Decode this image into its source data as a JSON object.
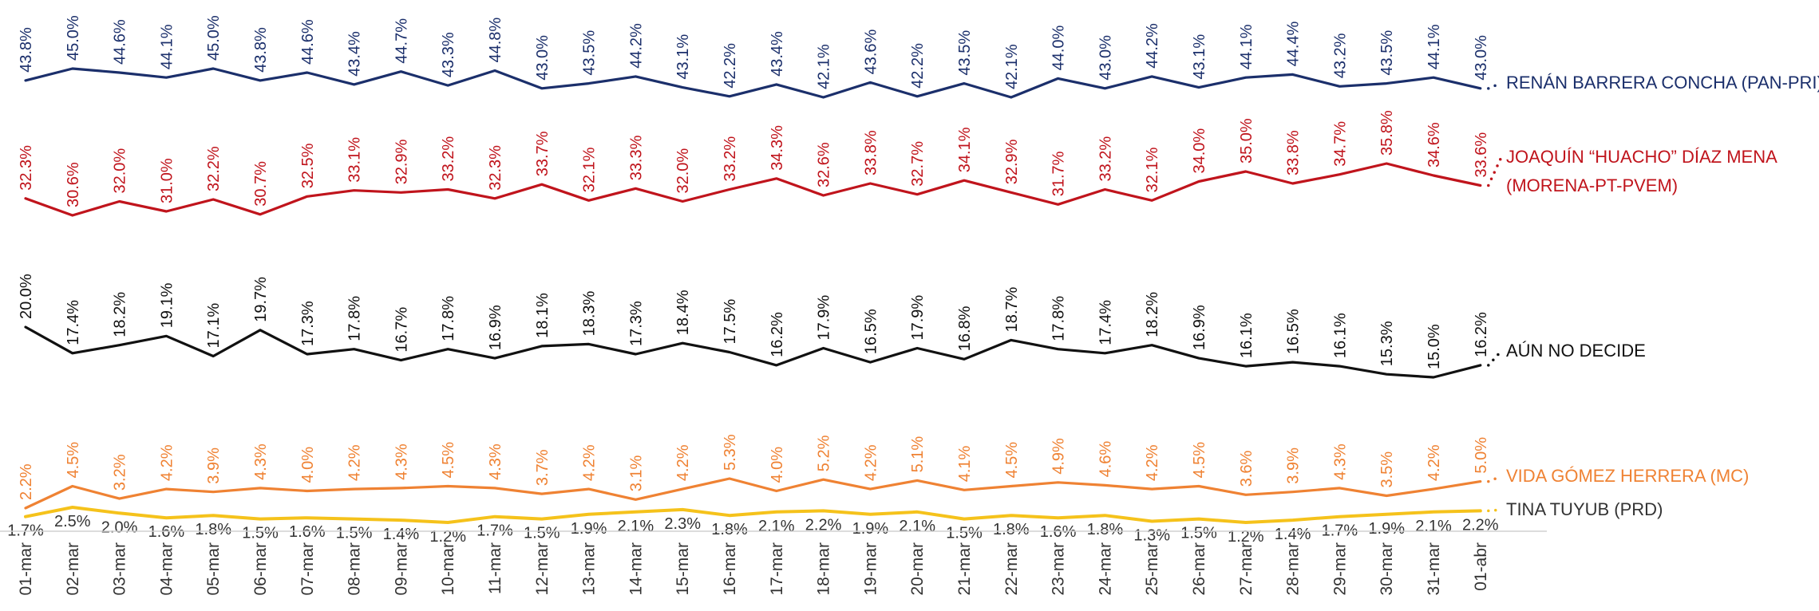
{
  "chart_data": {
    "type": "line",
    "categories": [
      "01-mar",
      "02-mar",
      "03-mar",
      "04-mar",
      "05-mar",
      "06-mar",
      "07-mar",
      "08-mar",
      "09-mar",
      "10-mar",
      "11-mar",
      "12-mar",
      "13-mar",
      "14-mar",
      "15-mar",
      "16-mar",
      "17-mar",
      "18-mar",
      "19-mar",
      "20-mar",
      "21-mar",
      "22-mar",
      "23-mar",
      "24-mar",
      "25-mar",
      "26-mar",
      "27-mar",
      "28-mar",
      "29-mar",
      "30-mar",
      "31-mar",
      "01-abr"
    ],
    "series": [
      {
        "name": "RENÁN BARRERA CONCHA (PAN-PRI)",
        "color": "#1b2f6b",
        "values": [
          43.8,
          45.0,
          44.6,
          44.1,
          45.0,
          43.8,
          44.6,
          43.4,
          44.7,
          43.3,
          44.8,
          43.0,
          43.5,
          44.2,
          43.1,
          42.2,
          43.4,
          42.1,
          43.6,
          42.2,
          43.5,
          42.1,
          44.0,
          43.0,
          44.2,
          43.1,
          44.1,
          44.4,
          43.2,
          43.5,
          44.1,
          43.0
        ]
      },
      {
        "name": "JOAQUÍN “HUACHO” DÍAZ MENA (MORENA-PT-PVEM)",
        "name_lines": [
          "JOAQUÍN “HUACHO” DÍAZ MENA",
          "(MORENA-PT-PVEM)"
        ],
        "color": "#c0141c",
        "values": [
          32.3,
          30.6,
          32.0,
          31.0,
          32.2,
          30.7,
          32.5,
          33.1,
          32.9,
          33.2,
          32.3,
          33.7,
          32.1,
          33.3,
          32.0,
          33.2,
          34.3,
          32.6,
          33.8,
          32.7,
          34.1,
          32.9,
          31.7,
          33.2,
          32.1,
          34.0,
          35.0,
          33.8,
          34.7,
          35.8,
          34.6,
          33.6
        ]
      },
      {
        "name": "AÚN NO DECIDE",
        "color": "#111111",
        "values": [
          20.0,
          17.4,
          18.2,
          19.1,
          17.1,
          19.7,
          17.3,
          17.8,
          16.7,
          17.8,
          16.9,
          18.1,
          18.3,
          17.3,
          18.4,
          17.5,
          16.2,
          17.9,
          16.5,
          17.9,
          16.8,
          18.7,
          17.8,
          17.4,
          18.2,
          16.9,
          16.1,
          16.5,
          16.1,
          15.3,
          15.0,
          16.2
        ]
      },
      {
        "name": "VIDA GÓMEZ HERRERA (MC)",
        "color": "#ef8233",
        "values": [
          2.2,
          4.5,
          3.2,
          4.2,
          3.9,
          4.3,
          4.0,
          4.2,
          4.3,
          4.5,
          4.3,
          3.7,
          4.2,
          3.1,
          4.2,
          5.3,
          4.0,
          5.2,
          4.2,
          5.1,
          4.1,
          4.5,
          4.9,
          4.6,
          4.2,
          4.5,
          3.6,
          3.9,
          4.3,
          3.5,
          4.2,
          5.0
        ]
      },
      {
        "name": "TINA TUYUB (PRD)",
        "color": "#f5c21b",
        "label_color": "#333333",
        "values": [
          1.7,
          2.5,
          2.0,
          1.6,
          1.8,
          1.5,
          1.6,
          1.5,
          1.4,
          1.2,
          1.7,
          1.5,
          1.9,
          2.1,
          2.3,
          1.8,
          2.1,
          2.2,
          1.9,
          2.1,
          1.5,
          1.8,
          1.6,
          1.8,
          1.3,
          1.5,
          1.2,
          1.4,
          1.7,
          1.9,
          2.1,
          2.2
        ]
      }
    ],
    "value_suffix": "%",
    "grid": false,
    "legend": "right, at line ends",
    "title": "",
    "xlabel": "",
    "ylabel": ""
  }
}
